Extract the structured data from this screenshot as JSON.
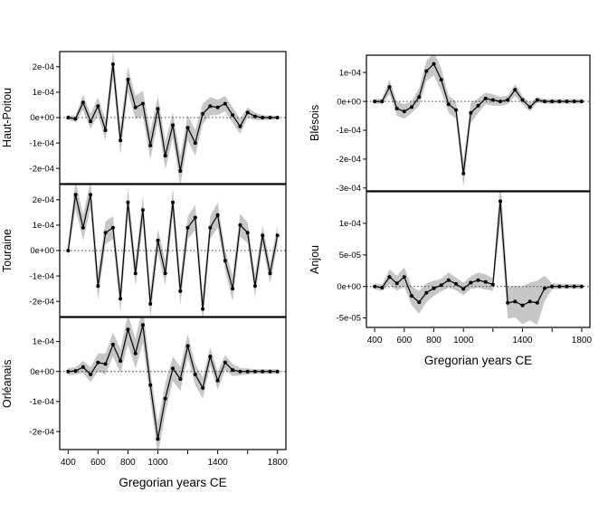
{
  "figure": {
    "background": "#ffffff"
  },
  "x_axis": {
    "label": "Gregorian years CE",
    "range": [
      344,
      1856
    ],
    "ticks": [
      400,
      600,
      800,
      1000,
      1200,
      1400,
      1600,
      1800
    ],
    "tick_labels": [
      "400",
      "600",
      "800",
      "1000",
      "",
      "1400",
      "",
      "1800"
    ]
  },
  "colors": {
    "band": "#c6c6c6",
    "line": "#000000",
    "zero_line": "#3a3a3a",
    "axis": "#000000"
  },
  "chart_data": [
    {
      "type": "line",
      "ylabel": "Haut-Poitou",
      "y_unit": 0.0001,
      "ylim": [
        -2.6,
        2.6
      ],
      "yticks": [
        {
          "v": 2,
          "label": "2e-04"
        },
        {
          "v": 1,
          "label": "1e-04"
        },
        {
          "v": 0,
          "label": "0e+00"
        },
        {
          "v": -1,
          "label": "-1e-04"
        },
        {
          "v": -2,
          "label": "-2e-04"
        }
      ],
      "x": [
        400,
        450,
        500,
        550,
        600,
        650,
        700,
        750,
        800,
        850,
        900,
        950,
        1000,
        1050,
        1100,
        1150,
        1200,
        1250,
        1300,
        1350,
        1400,
        1450,
        1500,
        1550,
        1600,
        1650,
        1700,
        1750,
        1800
      ],
      "y": [
        0,
        -0.05,
        0.6,
        -0.15,
        0.45,
        -0.5,
        2.1,
        -0.9,
        1.5,
        0.4,
        0.55,
        -1.1,
        0.35,
        -1.5,
        -0.3,
        -2.1,
        -0.4,
        -1.0,
        0.15,
        0.45,
        0.4,
        0.55,
        0.1,
        -0.35,
        0.2,
        0.05,
        0,
        0,
        0
      ],
      "ci": [
        0.1,
        0.12,
        0.3,
        0.3,
        0.35,
        0.4,
        0.55,
        0.55,
        0.5,
        0.45,
        0.5,
        0.55,
        0.5,
        0.55,
        0.5,
        0.6,
        0.5,
        0.5,
        0.4,
        0.35,
        0.3,
        0.3,
        0.3,
        0.3,
        0.2,
        0.15,
        0.1,
        0.08,
        0.08
      ]
    },
    {
      "type": "line",
      "ylabel": "Touraine",
      "y_unit": 0.0001,
      "ylim": [
        -2.6,
        2.6
      ],
      "yticks": [
        {
          "v": 2,
          "label": "2e-04"
        },
        {
          "v": 1,
          "label": "1e-04"
        },
        {
          "v": 0,
          "label": "0e+00"
        },
        {
          "v": -1,
          "label": "-1e-04"
        },
        {
          "v": -2,
          "label": "-2e-04"
        }
      ],
      "x": [
        400,
        450,
        500,
        550,
        600,
        650,
        700,
        750,
        800,
        850,
        900,
        950,
        1000,
        1050,
        1100,
        1150,
        1200,
        1250,
        1300,
        1350,
        1400,
        1450,
        1500,
        1550,
        1600,
        1650,
        1700,
        1750,
        1800
      ],
      "y": [
        0,
        2.2,
        0.9,
        2.2,
        -1.4,
        0.7,
        0.9,
        -1.9,
        1.9,
        -0.9,
        1.6,
        -2.1,
        0.4,
        -0.9,
        1.9,
        -1.6,
        0.9,
        1.3,
        -2.3,
        0.9,
        1.4,
        -0.4,
        -1.5,
        1.0,
        0.7,
        -1.4,
        0.6,
        -0.9,
        0.6
      ],
      "ci": [
        0.3,
        0.55,
        0.5,
        0.55,
        0.55,
        0.45,
        0.45,
        0.55,
        0.55,
        0.5,
        0.55,
        0.55,
        0.45,
        0.5,
        0.55,
        0.55,
        0.45,
        0.5,
        0.55,
        0.45,
        0.5,
        0.4,
        0.5,
        0.45,
        0.4,
        0.45,
        0.4,
        0.4,
        0.4
      ]
    },
    {
      "type": "line",
      "ylabel": "Orléanais",
      "y_unit": 0.0001,
      "ylim": [
        -2.6,
        1.8
      ],
      "yticks": [
        {
          "v": 1,
          "label": "1e-04"
        },
        {
          "v": 0,
          "label": "0e+00"
        },
        {
          "v": -1,
          "label": "-1e-04"
        },
        {
          "v": -2,
          "label": "-2e-04"
        }
      ],
      "x": [
        400,
        450,
        500,
        550,
        600,
        650,
        700,
        750,
        800,
        850,
        900,
        950,
        1000,
        1050,
        1100,
        1150,
        1200,
        1250,
        1300,
        1350,
        1400,
        1450,
        1500,
        1550,
        1600,
        1650,
        1700,
        1750,
        1800
      ],
      "y": [
        0,
        0.02,
        0.15,
        -0.1,
        0.3,
        0.25,
        0.9,
        0.35,
        1.4,
        0.6,
        1.55,
        -0.45,
        -2.25,
        -0.9,
        0.1,
        -0.25,
        0.85,
        -0.1,
        -0.55,
        0.5,
        -0.3,
        0.3,
        0.05,
        0,
        0,
        0,
        0,
        0,
        0
      ],
      "ci": [
        0.12,
        0.12,
        0.2,
        0.25,
        0.3,
        0.35,
        0.4,
        0.4,
        0.5,
        0.5,
        0.6,
        0.5,
        0.55,
        0.5,
        0.4,
        0.4,
        0.4,
        0.35,
        0.35,
        0.3,
        0.3,
        0.25,
        0.2,
        0.12,
        0.1,
        0.08,
        0.08,
        0.08,
        0.08
      ]
    },
    {
      "type": "line",
      "ylabel": "Blésois",
      "y_unit": 0.0001,
      "ylim": [
        -3.1,
        1.6
      ],
      "yticks": [
        {
          "v": 1,
          "label": "1e-04"
        },
        {
          "v": 0,
          "label": "0e+00"
        },
        {
          "v": -1,
          "label": "-1e-04"
        },
        {
          "v": -2,
          "label": "-2e-04"
        },
        {
          "v": -3,
          "label": "-3e-04"
        }
      ],
      "x": [
        400,
        450,
        500,
        550,
        600,
        650,
        700,
        750,
        800,
        850,
        900,
        950,
        1000,
        1050,
        1100,
        1150,
        1200,
        1250,
        1300,
        1350,
        1400,
        1450,
        1500,
        1550,
        1600,
        1650,
        1700,
        1750,
        1800
      ],
      "y": [
        0,
        0,
        0.5,
        -0.25,
        -0.35,
        -0.2,
        0.15,
        1.05,
        1.3,
        0.75,
        -0.1,
        -0.3,
        -2.5,
        -0.4,
        -0.15,
        0.1,
        0.05,
        0,
        0.05,
        0.4,
        0.05,
        -0.2,
        0.05,
        0,
        0,
        0,
        0,
        0,
        0
      ],
      "ci": [
        0.08,
        0.1,
        0.25,
        0.25,
        0.25,
        0.2,
        0.3,
        0.35,
        0.4,
        0.4,
        0.3,
        0.3,
        0.45,
        0.35,
        0.25,
        0.2,
        0.2,
        0.15,
        0.15,
        0.2,
        0.15,
        0.15,
        0.1,
        0.08,
        0.08,
        0.08,
        0.08,
        0.08,
        0.08
      ]
    },
    {
      "type": "line",
      "ylabel": "Anjou",
      "y_unit": 1e-05,
      "ylim": [
        -6.5,
        15
      ],
      "yticks": [
        {
          "v": 10,
          "label": "1e-04"
        },
        {
          "v": 5,
          "label": "5e-05"
        },
        {
          "v": 0,
          "label": "0e+00"
        },
        {
          "v": -5,
          "label": "-5e-05"
        }
      ],
      "x": [
        400,
        450,
        500,
        550,
        600,
        650,
        700,
        750,
        800,
        850,
        900,
        950,
        1000,
        1050,
        1100,
        1150,
        1200,
        1250,
        1300,
        1350,
        1400,
        1450,
        1500,
        1550,
        1600,
        1650,
        1700,
        1750,
        1800
      ],
      "y": [
        0,
        -0.2,
        1.5,
        0.5,
        1.5,
        -1.5,
        -2.5,
        -1.0,
        -0.3,
        0.2,
        1.0,
        0.4,
        -0.4,
        0.6,
        1.0,
        0.7,
        0.3,
        13.5,
        -2.6,
        -2.4,
        -3.0,
        -2.4,
        -2.6,
        -0.3,
        0,
        0,
        0,
        0,
        0
      ],
      "ci": [
        0.5,
        0.5,
        1.2,
        1.2,
        1.5,
        1.5,
        1.8,
        1.5,
        1.2,
        1.0,
        1.2,
        1.0,
        1.0,
        1.0,
        1.2,
        1.2,
        1.0,
        3.5,
        2.5,
        2.5,
        3.0,
        3.0,
        3.5,
        2.0,
        0.5,
        0.4,
        0.4,
        0.4,
        0.4
      ]
    }
  ]
}
